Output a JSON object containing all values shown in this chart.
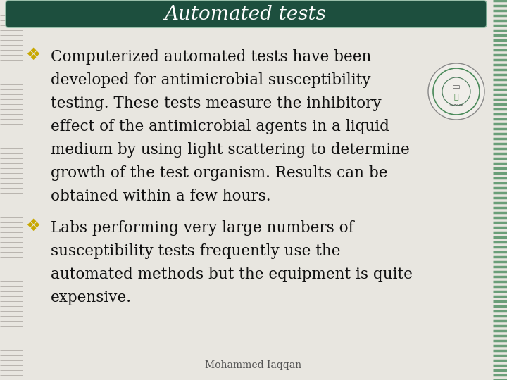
{
  "title": "Automated tests",
  "title_color": "#ffffff",
  "title_bg_color": "#1d4f3e",
  "title_font_size": 20,
  "bg_color": "#e8e6e0",
  "bullet1_line1": "Computerized automated tests have been",
  "bullet1_line2": "developed for antimicrobial susceptibility",
  "bullet1_line3": "testing. These tests measure the inhibitory",
  "bullet1_line4": "effect of the antimicrobial agents in a liquid",
  "bullet1_line5": "medium by using light scattering to determine",
  "bullet1_line6": "growth of the test organism. Results can be",
  "bullet1_line7": "obtained within a few hours.",
  "bullet2_line1": "Labs performing very large numbers of",
  "bullet2_line2": "susceptibility tests frequently use the",
  "bullet2_line3": "automated methods but the equipment is quite",
  "bullet2_line4": "expensive.",
  "footer": "Mohammed Iaqqan",
  "bullet_color": "#c8a800",
  "text_color": "#111111",
  "text_font_size": 15.5,
  "footer_font_size": 10,
  "stripe_gray": "#b8b4ae",
  "stripe_green": "#6a9e78"
}
